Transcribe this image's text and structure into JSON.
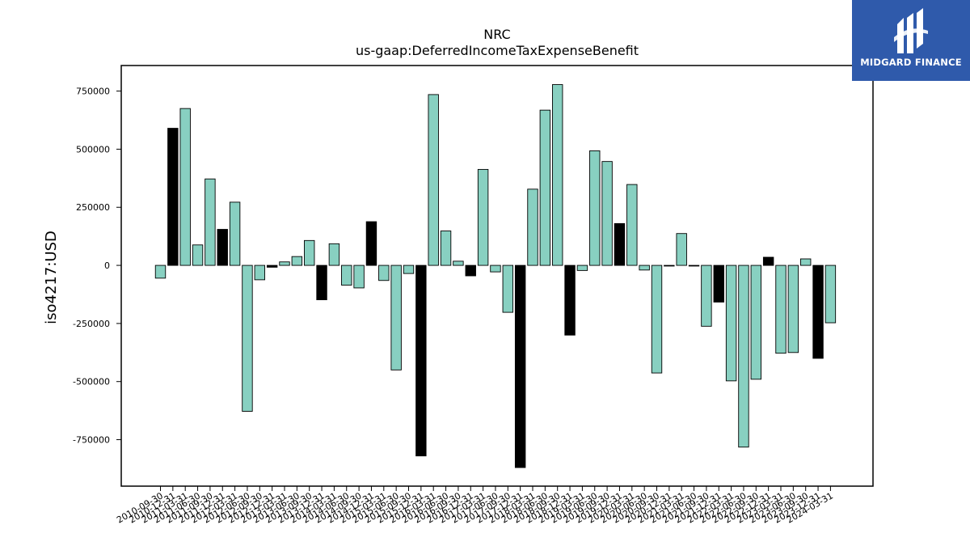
{
  "brand": {
    "name": "MIDGARD FINANCE",
    "bg_color": "#2f5aab",
    "icon": "midgard-logo-icon"
  },
  "chart_data": {
    "type": "bar",
    "title": "NRC",
    "subtitle": "us-gaap:DeferredIncomeTaxExpenseBenefit",
    "xlabel": "",
    "ylabel": "iso4217:USD",
    "ylim": [
      -950000,
      860000
    ],
    "yticks": [
      -750000,
      -500000,
      -250000,
      0,
      250000,
      500000,
      750000
    ],
    "grid": false,
    "colors": {
      "normal": "#88d0c1",
      "highlight": "#000000",
      "edge": "#000000"
    },
    "categories": [
      "2010-09-30",
      "2010-12-31",
      "2011-03-31",
      "2011-06-30",
      "2011-09-30",
      "2011-12-31",
      "2012-03-31",
      "2012-06-30",
      "2012-09-30",
      "2012-12-31",
      "2013-03-31",
      "2013-06-30",
      "2013-09-30",
      "2013-12-31",
      "2014-03-31",
      "2014-06-30",
      "2014-09-30",
      "2014-12-31",
      "2015-03-31",
      "2015-06-30",
      "2015-09-30",
      "2015-12-31",
      "2016-03-31",
      "2016-06-30",
      "2016-09-30",
      "2016-12-31",
      "2017-03-31",
      "2017-06-30",
      "2017-09-30",
      "2017-12-31",
      "2018-03-31",
      "2018-06-30",
      "2018-09-30",
      "2018-12-31",
      "2019-03-31",
      "2019-06-30",
      "2019-09-30",
      "2019-12-31",
      "2020-03-31",
      "2020-06-30",
      "2020-09-30",
      "2020-12-31",
      "2021-03-31",
      "2021-06-30",
      "2021-09-30",
      "2021-12-31",
      "2022-03-31",
      "2022-06-30",
      "2022-09-30",
      "2022-12-31",
      "2023-03-31",
      "2023-06-30",
      "2023-09-30",
      "2023-12-31",
      "2024-03-31"
    ],
    "values": [
      -55000,
      590000,
      675000,
      88000,
      372000,
      155000,
      272000,
      -628000,
      -62000,
      -8000,
      15000,
      38000,
      107000,
      -148000,
      93000,
      -85000,
      -97000,
      188000,
      -65000,
      -450000,
      -35000,
      -820000,
      735000,
      148000,
      18000,
      -45000,
      413000,
      -28000,
      -202000,
      -870000,
      328000,
      668000,
      778000,
      -300000,
      -22000,
      493000,
      447000,
      180000,
      348000,
      -20000,
      -463000,
      -3000,
      137000,
      -3000,
      -262000,
      -158000,
      -497000,
      -782000,
      -490000,
      35000,
      -378000,
      -375000,
      28000,
      -400000,
      -247000
    ],
    "highlight": [
      false,
      true,
      false,
      false,
      false,
      true,
      false,
      false,
      false,
      true,
      false,
      false,
      false,
      true,
      false,
      false,
      false,
      true,
      false,
      false,
      false,
      true,
      false,
      false,
      false,
      true,
      false,
      false,
      false,
      true,
      false,
      false,
      false,
      true,
      false,
      false,
      false,
      true,
      false,
      false,
      false,
      false,
      false,
      false,
      false,
      true,
      false,
      false,
      false,
      true,
      false,
      false,
      false,
      true,
      false
    ]
  }
}
